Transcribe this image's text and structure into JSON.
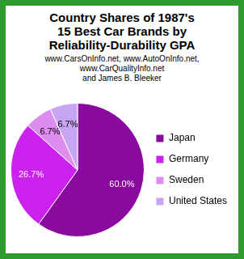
{
  "chart_data": {
    "type": "pie",
    "title": "Country Shares of 1987's\n15 Best Car Brands by\nReliability-Durability GPA",
    "subtitle": "www.CarsOnInfo.net, www.AutoOnInfo.net,\nwww.CarQualityInfo.net\nand James B. Bleeker",
    "categories": [
      "Japan",
      "Germany",
      "Sweden",
      "United States"
    ],
    "values": [
      60.0,
      26.7,
      6.7,
      6.7
    ],
    "value_labels": [
      "60.0%",
      "26.7%",
      "6.7%",
      "6.7%"
    ],
    "colors": [
      "#8a0aa0",
      "#cc22ee",
      "#dd8cf0",
      "#c6a6f2"
    ],
    "data_labels": true,
    "legend": "right"
  }
}
